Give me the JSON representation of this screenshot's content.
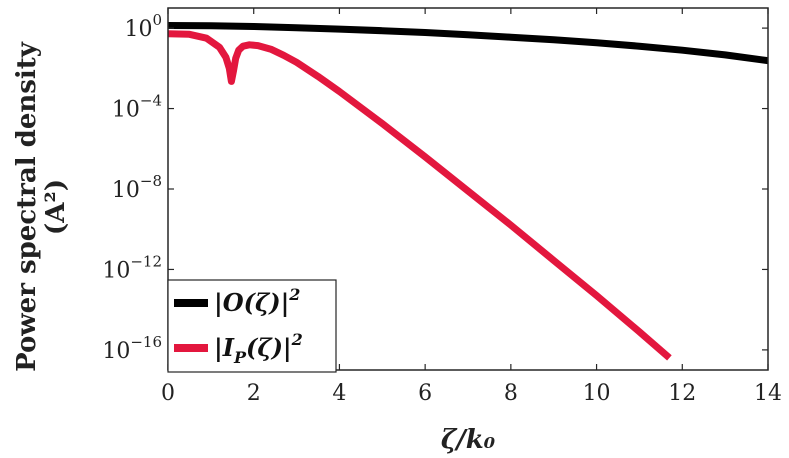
{
  "chart_data": {
    "type": "line",
    "xlabel": "ζ/k₀",
    "ylabel": "Power spectral density",
    "ylabel_unit": "(A²)",
    "xlim": [
      0,
      14
    ],
    "ylim_log10": [
      -17,
      1
    ],
    "y_scale": "log",
    "x_ticks": [
      0,
      2,
      4,
      6,
      8,
      10,
      12,
      14
    ],
    "x_tick_labels": [
      "0",
      "2",
      "4",
      "6",
      "8",
      "10",
      "12",
      "14"
    ],
    "y_ticks_log10": [
      0,
      -4,
      -8,
      -12,
      -16
    ],
    "y_tick_labels": [
      {
        "base": "10",
        "exp": "0"
      },
      {
        "base": "10",
        "exp": "−4"
      },
      {
        "base": "10",
        "exp": "−8"
      },
      {
        "base": "10",
        "exp": "−12"
      },
      {
        "base": "10",
        "exp": "−16"
      }
    ],
    "grid": false,
    "legend_position": "bottom-left",
    "series": [
      {
        "name": "|O(ζ)|²",
        "color": "#000000",
        "x": [
          0,
          1,
          2,
          3,
          4,
          5,
          6,
          7,
          8,
          9,
          10,
          11,
          12,
          13,
          14
        ],
        "log10_y": [
          0.13,
          0.12,
          0.08,
          0.02,
          -0.05,
          -0.13,
          -0.22,
          -0.33,
          -0.45,
          -0.58,
          -0.73,
          -0.9,
          -1.1,
          -1.33,
          -1.62
        ]
      },
      {
        "name": "|I_P(ζ)|²",
        "color": "#e3173e",
        "x": [
          0,
          0.5,
          0.9,
          1.2,
          1.35,
          1.43,
          1.48,
          1.53,
          1.58,
          1.65,
          1.75,
          1.9,
          2.1,
          2.4,
          2.7,
          3.0,
          3.5,
          4.0,
          5.0,
          6.0,
          7.0,
          8.0,
          9.0,
          10.0,
          11.0,
          11.7
        ],
        "log10_y": [
          -0.28,
          -0.31,
          -0.5,
          -0.95,
          -1.45,
          -2.0,
          -2.65,
          -2.1,
          -1.5,
          -1.1,
          -0.9,
          -0.83,
          -0.87,
          -1.05,
          -1.35,
          -1.7,
          -2.4,
          -3.15,
          -4.75,
          -6.4,
          -8.1,
          -9.8,
          -11.55,
          -13.3,
          -15.1,
          -16.4
        ]
      }
    ],
    "legend": [
      {
        "base": "|O(ζ)|",
        "sub": "",
        "tail": "",
        "sup": "2"
      },
      {
        "base": "|I",
        "sub": "P",
        "tail": "(ζ)|",
        "sup": "2"
      }
    ]
  }
}
